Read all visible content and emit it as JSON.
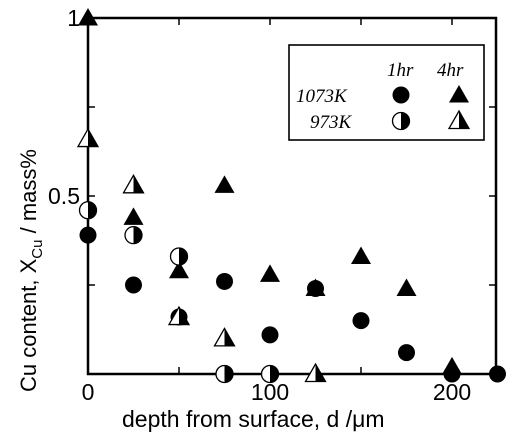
{
  "chart_data": {
    "type": "scatter",
    "ylabel": {
      "main": "Cu content,  X",
      "sub": "Cu",
      "unit": " / mass%"
    },
    "xlabel": "depth from surface,  d /μm",
    "xlim": [
      0,
      225
    ],
    "ylim": [
      0,
      1.0
    ],
    "x_ticks": [
      {
        "value": 0,
        "label": "0"
      },
      {
        "value": 100,
        "label": "100"
      },
      {
        "value": 200,
        "label": "200"
      }
    ],
    "y_ticks": [
      {
        "value": 0.5,
        "label": "0.5"
      },
      {
        "value": 1.0,
        "label": "1"
      }
    ],
    "legend": {
      "placement": "top-right",
      "col_headers": [
        "1hr",
        "4hr"
      ],
      "rows": [
        "1073K",
        "973K"
      ]
    },
    "series": [
      {
        "name": "1073K 1hr",
        "marker": "filled-circle",
        "x": [
          0,
          25,
          50,
          75,
          100,
          125,
          150,
          175,
          200,
          225
        ],
        "y": [
          0.39,
          0.25,
          0.16,
          0.26,
          0.11,
          0.24,
          0.15,
          0.06,
          0.0,
          0.0
        ]
      },
      {
        "name": "1073K 4hr",
        "marker": "filled-triangle",
        "x": [
          0,
          25,
          50,
          75,
          100,
          125,
          150,
          175,
          200
        ],
        "y": [
          1.0,
          0.44,
          0.29,
          0.53,
          0.28,
          0.24,
          0.33,
          0.24,
          0.02
        ]
      },
      {
        "name": "973K 1hr",
        "marker": "half-circle",
        "x": [
          0,
          25,
          50,
          75,
          100
        ],
        "y": [
          0.46,
          0.39,
          0.33,
          0.0,
          0.0
        ]
      },
      {
        "name": "973K 4hr",
        "marker": "half-triangle",
        "x": [
          0,
          25,
          50,
          75,
          125
        ],
        "y": [
          0.66,
          0.53,
          0.16,
          0.1,
          0.0
        ]
      }
    ]
  }
}
